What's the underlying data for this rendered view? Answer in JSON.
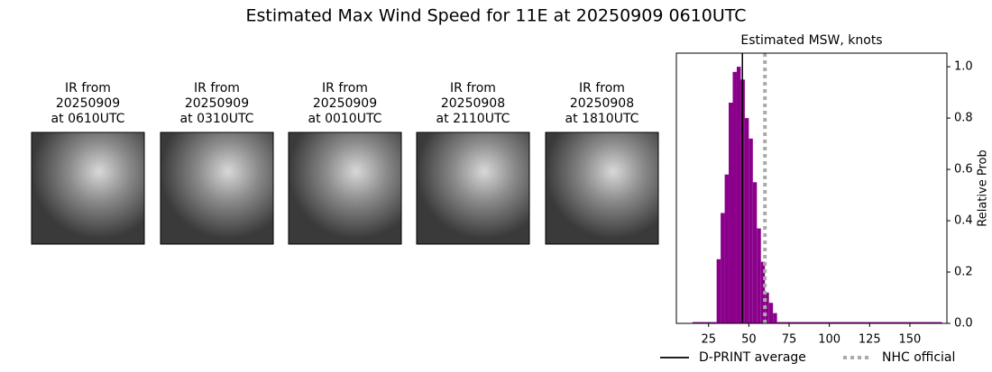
{
  "title": "Estimated Max Wind Speed for 11E at 20250909 0610UTC",
  "panels": [
    {
      "lines": [
        "IR from",
        "20250909",
        "at 0610UTC"
      ]
    },
    {
      "lines": [
        "IR from",
        "20250909",
        "at 0310UTC"
      ]
    },
    {
      "lines": [
        "IR from",
        "20250909",
        "at 0010UTC"
      ]
    },
    {
      "lines": [
        "IR from",
        "20250908",
        "at 2110UTC"
      ]
    },
    {
      "lines": [
        "IR from",
        "20250908",
        "at 1810UTC"
      ]
    }
  ],
  "chart_data": {
    "type": "histogram",
    "title": "Estimated MSW, knots",
    "y_label": "Relative Prob",
    "color": "#8b008b",
    "bins": [
      15,
      30,
      32.5,
      35,
      37.5,
      40,
      42.5,
      45,
      47.5,
      50,
      52.5,
      55,
      57.5,
      60,
      62.5,
      65,
      67.5,
      170
    ],
    "values": [
      0.005,
      0.25,
      0.43,
      0.58,
      0.86,
      0.98,
      1.0,
      0.95,
      0.8,
      0.72,
      0.55,
      0.37,
      0.24,
      0.12,
      0.08,
      0.04,
      0.005
    ],
    "xlim": [
      5,
      173
    ],
    "ylim": [
      0,
      1.053
    ],
    "xticks": [
      25,
      50,
      75,
      100,
      125,
      150
    ],
    "yticks": [
      {
        "value": 0,
        "label": "0.0"
      },
      {
        "value": 0.2,
        "label": "0.2"
      },
      {
        "value": 0.4,
        "label": "0.4"
      },
      {
        "value": 0.6,
        "label": "0.6"
      },
      {
        "value": 0.8,
        "label": "0.8"
      },
      {
        "value": 1.0,
        "label": "1.0"
      }
    ],
    "reference_lines": [
      {
        "name": "D-PRINT average",
        "value": 46,
        "color": "#000000",
        "style": "solid"
      },
      {
        "name": "NHC official",
        "value": 60,
        "color": "#aaaaaa",
        "style": "dotted"
      }
    ]
  }
}
